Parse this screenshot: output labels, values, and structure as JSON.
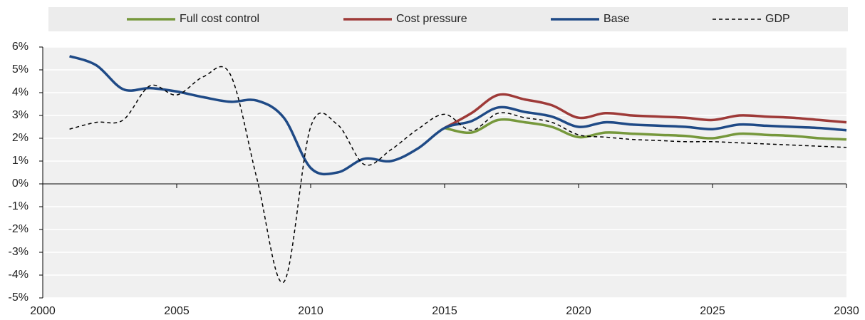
{
  "chart_data": {
    "type": "line",
    "x": [
      2001,
      2002,
      2003,
      2004,
      2005,
      2006,
      2007,
      2008,
      2009,
      2010,
      2011,
      2012,
      2013,
      2014,
      2015,
      2016,
      2017,
      2018,
      2019,
      2020,
      2021,
      2022,
      2023,
      2024,
      2025,
      2026,
      2027,
      2028,
      2029,
      2030
    ],
    "series": [
      {
        "name": "Full cost control",
        "color": "#76983c",
        "dash": false,
        "values": [
          null,
          null,
          null,
          null,
          null,
          null,
          null,
          null,
          null,
          null,
          null,
          null,
          null,
          null,
          2.45,
          2.25,
          2.8,
          2.7,
          2.5,
          2.05,
          2.25,
          2.2,
          2.15,
          2.1,
          2.0,
          2.2,
          2.15,
          2.1,
          2.0,
          1.95
        ]
      },
      {
        "name": "Cost pressure",
        "color": "#9e3a38",
        "dash": false,
        "values": [
          null,
          null,
          null,
          null,
          null,
          null,
          null,
          null,
          null,
          null,
          null,
          null,
          null,
          null,
          2.45,
          3.1,
          3.9,
          3.7,
          3.45,
          2.9,
          3.1,
          3.0,
          2.95,
          2.9,
          2.8,
          3.0,
          2.95,
          2.9,
          2.8,
          2.7
        ]
      },
      {
        "name": "Base",
        "color": "#1f4a86",
        "dash": false,
        "values": [
          5.6,
          5.2,
          4.15,
          4.2,
          4.05,
          3.8,
          3.6,
          3.65,
          2.9,
          0.7,
          0.5,
          1.1,
          1.0,
          1.55,
          2.45,
          2.75,
          3.35,
          3.15,
          2.95,
          2.5,
          2.7,
          2.6,
          2.55,
          2.5,
          2.4,
          2.6,
          2.55,
          2.5,
          2.45,
          2.35
        ]
      },
      {
        "name": "GDP",
        "color": "#000000",
        "dash": true,
        "values": [
          2.4,
          2.7,
          2.8,
          4.3,
          3.9,
          4.7,
          4.8,
          0.2,
          -4.3,
          2.5,
          2.6,
          0.85,
          1.5,
          2.4,
          3.05,
          2.35,
          3.1,
          2.9,
          2.7,
          2.15,
          2.05,
          1.95,
          1.9,
          1.85,
          1.85,
          1.8,
          1.75,
          1.7,
          1.65,
          1.6
        ]
      }
    ],
    "xlim": [
      2000,
      2030
    ],
    "xticks": [
      2000,
      2005,
      2010,
      2015,
      2020,
      2025,
      2030
    ],
    "ylim": [
      -5,
      6
    ],
    "yticks": [
      {
        "value": -5,
        "label": "-5%"
      },
      {
        "value": -4,
        "label": "-4%"
      },
      {
        "value": -3,
        "label": "-3%"
      },
      {
        "value": -2,
        "label": "-2%"
      },
      {
        "value": -1,
        "label": "-1%"
      },
      {
        "value": 0,
        "label": "0%"
      },
      {
        "value": 1,
        "label": "1%"
      },
      {
        "value": 2,
        "label": "2%"
      },
      {
        "value": 3,
        "label": "3%"
      },
      {
        "value": 4,
        "label": "4%"
      },
      {
        "value": 5,
        "label": "5%"
      },
      {
        "value": 6,
        "label": "6%"
      }
    ],
    "grid": true,
    "legend": "top"
  }
}
